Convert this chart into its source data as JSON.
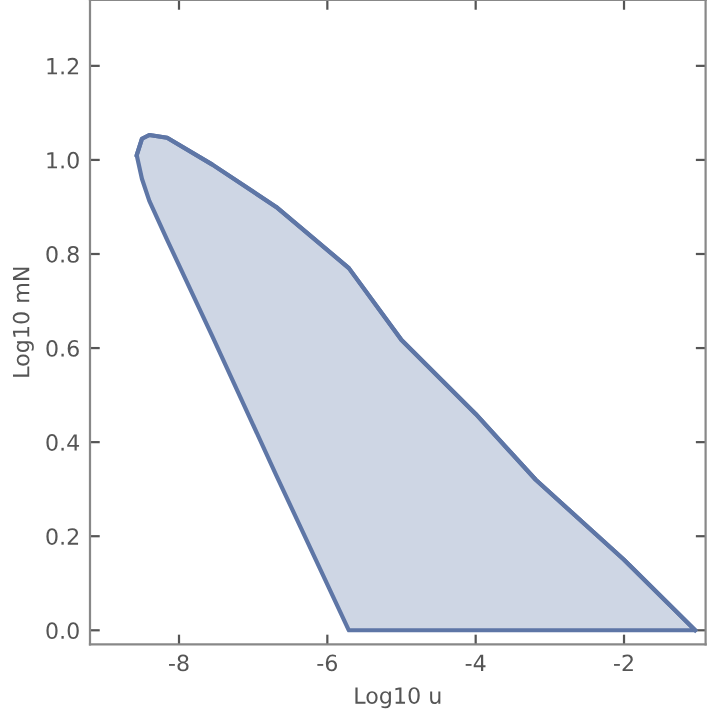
{
  "chart_data": {
    "type": "line",
    "xlabel": "Log10 u",
    "ylabel": "Log10 mN",
    "xlim": [
      -9.2,
      -0.9
    ],
    "ylim": [
      -0.03,
      1.34
    ],
    "xticks": [
      -8,
      -6,
      -4,
      -2
    ],
    "yticks": [
      {
        "value": 0,
        "label": "0.0"
      },
      0.2,
      0.4,
      0.6,
      0.8,
      {
        "value": 1,
        "label": "1.0"
      },
      1.2
    ],
    "grid": false,
    "series": [
      {
        "color": "#5e76a6",
        "x": [
          -8.57,
          -8.5,
          -8.4,
          -8.16,
          -7.55,
          -6.69,
          -5.71,
          -5.0,
          -4.0,
          -3.19,
          -2.0,
          -1.04
        ],
        "values": [
          1.01,
          1.045,
          1.053,
          1.047,
          0.99,
          0.9,
          0.77,
          0.617,
          0.46,
          0.32,
          0.15,
          0
        ],
        "upper": [
          1.01,
          1.045,
          1.053,
          1.047,
          0.99,
          0.9,
          0.77,
          0.617,
          0.46,
          0.32,
          0.15,
          0
        ],
        "lower": [
          1.01,
          0.96,
          0.913,
          0.83,
          0.625,
          0.33,
          0,
          0,
          0,
          0,
          0,
          0
        ]
      }
    ]
  }
}
